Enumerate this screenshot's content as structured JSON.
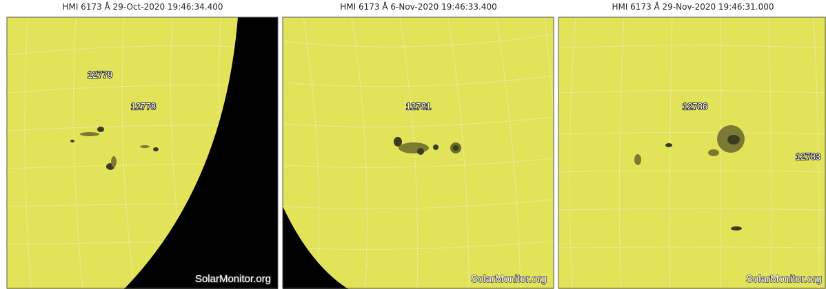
{
  "panels": [
    {
      "title": "HMI 6173 Å 29-Oct-2020 19:46:34.400",
      "regions": [
        "12779",
        "12778"
      ],
      "watermark": "SolarMonitor.org"
    },
    {
      "title": "HMI 6173 Å  6-Nov-2020 19:46:33.400",
      "regions": [
        "12781"
      ],
      "watermark": "SolarMonitor.org"
    },
    {
      "title": "HMI 6173 Å 29-Nov-2020 19:46:31.000",
      "regions": [
        "12786",
        "12783"
      ],
      "watermark": "SolarMonitor.org"
    }
  ]
}
